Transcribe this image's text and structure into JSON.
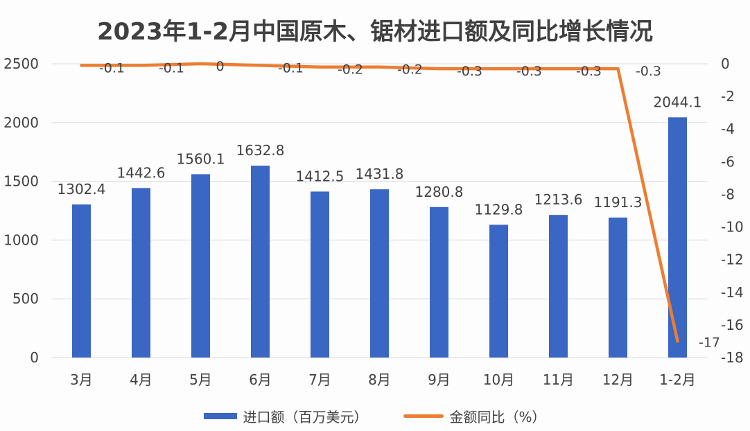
{
  "chart_data": {
    "type": "bar+line",
    "title": "2023年1-2月中国原木、锯材进口额及同比增长情况",
    "categories": [
      "3月",
      "4月",
      "5月",
      "6月",
      "7月",
      "8月",
      "9月",
      "10月",
      "11月",
      "12月",
      "1-2月"
    ],
    "series": [
      {
        "name": "进口额（百万美元）",
        "type": "bar",
        "axis": "left",
        "color": "#3a66c4",
        "values": [
          1302.4,
          1442.6,
          1560.1,
          1632.8,
          1412.5,
          1431.8,
          1280.8,
          1129.8,
          1213.6,
          1191.3,
          2044.1
        ],
        "labels": [
          "1302.4",
          "1442.6",
          "1560.1",
          "1632.8",
          "1412.5",
          "1431.8",
          "1280.8",
          "1129.8",
          "1213.6",
          "1191.3",
          "2044.1"
        ]
      },
      {
        "name": "金额同比（%）",
        "type": "line",
        "axis": "right",
        "color": "#ed7d31",
        "values": [
          -0.1,
          -0.1,
          0,
          -0.1,
          -0.2,
          -0.2,
          -0.3,
          -0.3,
          -0.3,
          -0.3,
          -17
        ],
        "labels": [
          "-0.1",
          "-0.1",
          "0",
          "-0.1",
          "-0.2",
          "-0.2",
          "-0.3",
          "-0.3",
          "-0.3",
          "-0.3",
          "-17"
        ]
      }
    ],
    "left_axis": {
      "min": 0,
      "max": 2500,
      "ticks": [
        0,
        500,
        1000,
        1500,
        2000,
        2500
      ]
    },
    "right_axis": {
      "min": -18,
      "max": 0,
      "ticks": [
        0,
        -2,
        -4,
        -6,
        -8,
        -10,
        -12,
        -14,
        -16,
        -18
      ]
    },
    "xlabel": "",
    "ylabel": "",
    "grid": true,
    "legend_position": "bottom"
  },
  "legend": {
    "bar_label": "进口额（百万美元）",
    "line_label": "金额同比（%）"
  }
}
